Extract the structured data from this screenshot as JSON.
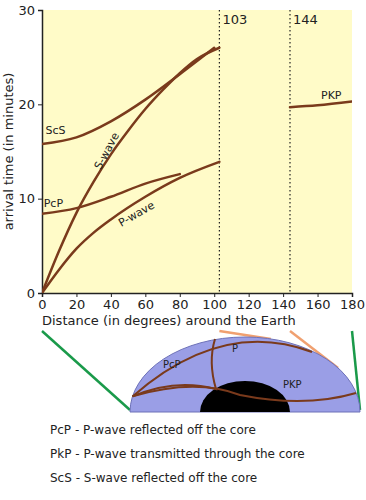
{
  "chart_data": {
    "type": "line",
    "xlabel": "Distance (in degrees) around the Earth",
    "ylabel": "arrival time (in minutes)",
    "xlim": [
      0,
      180
    ],
    "ylim": [
      0,
      30
    ],
    "xticks": [
      0,
      20,
      40,
      60,
      80,
      100,
      120,
      140,
      160,
      180
    ],
    "yticks": [
      0,
      10,
      20,
      30
    ],
    "vlines": [
      103,
      144
    ],
    "series": [
      {
        "name": "ScS",
        "color": "#7a3a1c",
        "x": [
          0,
          20,
          40,
          60,
          80,
          100
        ],
        "values": [
          15.8,
          16.5,
          18.2,
          20.5,
          23.2,
          26
        ]
      },
      {
        "name": "S-wave",
        "color": "#7a3a1c",
        "x": [
          0,
          10,
          20,
          30,
          40,
          50,
          60,
          70,
          80,
          90,
          103
        ],
        "values": [
          0,
          4.5,
          8.5,
          11.8,
          14.7,
          17.2,
          19.5,
          21.5,
          23.3,
          24.8,
          26
        ]
      },
      {
        "name": "PcP",
        "color": "#7a3a1c",
        "x": [
          0,
          20,
          40,
          60,
          80
        ],
        "values": [
          8.4,
          9,
          10.2,
          11.6,
          12.6
        ]
      },
      {
        "name": "P-wave",
        "color": "#7a3a1c",
        "x": [
          0,
          10,
          20,
          30,
          40,
          60,
          80,
          103
        ],
        "values": [
          0,
          2.5,
          4.7,
          6.4,
          7.8,
          10.2,
          12.2,
          13.9
        ]
      },
      {
        "name": "PKP",
        "color": "#7a3a1c",
        "x": [
          144,
          160,
          180
        ],
        "values": [
          19.7,
          19.9,
          20.3
        ]
      }
    ]
  },
  "diagram": {
    "rays": [
      "PcP",
      "P",
      "PKP"
    ],
    "notes": [
      "PcP - P-wave reflected off the core",
      "PkP - P-wave transmitted through the core",
      "ScS - S-wave reflected off the core"
    ]
  }
}
